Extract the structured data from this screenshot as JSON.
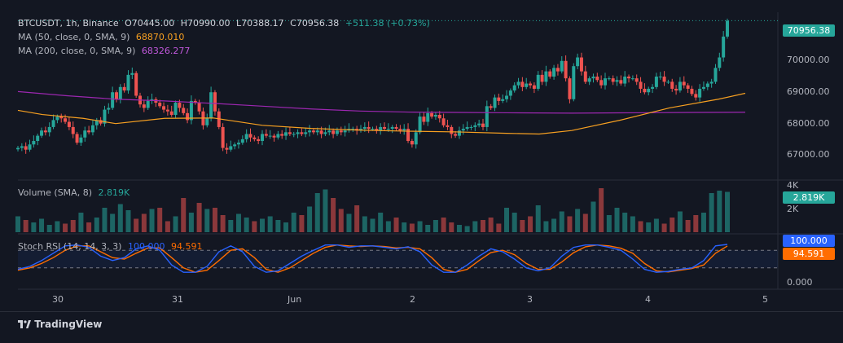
{
  "header": {
    "symbol": "BTCUSDT, 1h, Binance",
    "open": "O70445.00",
    "high": "H70990.00",
    "low": "L70388.17",
    "close": "C70956.38",
    "change": "+511.38 (+0.73%)",
    "ma50_label": "MA (50, close, 0, SMA, 9)",
    "ma50_value": "68870.010",
    "ma200_label": "MA (200, close, 0, SMA, 9)",
    "ma200_value": "68326.277",
    "volume_label": "Volume (SMA, 8)",
    "volume_value": "2.819K",
    "stoch_label": "Stoch RSI (14, 14, 3, 3)",
    "stoch_k": "100.000",
    "stoch_d": "94.591"
  },
  "price_axis": {
    "ticks": [
      "70000.00",
      "69000.00",
      "68000.00",
      "67000.00"
    ],
    "current_price": "70956.38"
  },
  "volume_axis": {
    "ticks": [
      "4K",
      "2K"
    ],
    "current": "2.819K"
  },
  "stoch_axis": {
    "ticks": [
      "0.000"
    ],
    "k_tag": "100.000",
    "d_tag": "94.591"
  },
  "time_axis": [
    "30",
    "31",
    "Jun",
    "2",
    "3",
    "4",
    "5"
  ],
  "footer": {
    "logo_text": "TradingView"
  },
  "colors": {
    "up": "#26a69a",
    "down": "#ef5350",
    "ma50": "#f7a021",
    "ma200": "#9c27b0",
    "stoch_k": "#2962ff",
    "stoch_d": "#ff6d00",
    "bg": "#131722"
  },
  "chart_data": {
    "type": "candlestick",
    "price_range": [
      66400,
      71200
    ],
    "candles_close": [
      67300,
      67350,
      67250,
      67400,
      67500,
      67650,
      67800,
      67750,
      67900,
      68100,
      68200,
      68150,
      68050,
      67900,
      67700,
      67450,
      67600,
      67800,
      67750,
      67950,
      68100,
      68000,
      68400,
      68450,
      68900,
      68700,
      69050,
      68950,
      69400,
      69450,
      68800,
      68550,
      68450,
      68650,
      68700,
      68600,
      68500,
      68400,
      68350,
      68250,
      68600,
      68450,
      68300,
      68100,
      68650,
      68600,
      68350,
      67950,
      68150,
      68900,
      68350,
      67900,
      67300,
      67250,
      67350,
      67400,
      67450,
      67550,
      67700,
      67600,
      67550,
      67500,
      67700,
      67650,
      67650,
      67600,
      67700,
      67650,
      67750,
      67700,
      67700,
      67750,
      67700,
      67750,
      67800,
      67750,
      67800,
      67700,
      67750,
      67800,
      67700,
      67800,
      67750,
      67800,
      67850,
      67850,
      67800,
      67850,
      67900,
      67850,
      67850,
      67800,
      67900,
      67850,
      67850,
      67900,
      67850,
      67800,
      67850,
      67500,
      67400,
      67750,
      68200,
      68050,
      68300,
      68200,
      68250,
      68150,
      67950,
      67900,
      67700,
      67650,
      67800,
      67850,
      67900,
      67900,
      67950,
      68000,
      67900,
      68500,
      68450,
      68750,
      68650,
      68700,
      68800,
      68950,
      69100,
      69200,
      69050,
      69150,
      69100,
      69000,
      69400,
      69200,
      69500,
      69350,
      69600,
      69500,
      69800,
      69300,
      68700,
      69650,
      69900,
      69500,
      69200,
      69300,
      69350,
      69250,
      69100,
      69300,
      69300,
      69200,
      69250,
      69150,
      69350,
      69300,
      69300,
      69200,
      69000,
      68900,
      69000,
      69050,
      69350,
      69350,
      69200,
      69200,
      69000,
      68950,
      69200,
      69100,
      69000,
      68850,
      68750,
      69000,
      69050,
      69150,
      69200,
      69600,
      69900,
      70500,
      70956
    ],
    "ma50_points": [
      [
        0,
        68380
      ],
      [
        30,
        68260
      ],
      [
        80,
        68150
      ],
      [
        120,
        68000
      ],
      [
        180,
        68150
      ],
      [
        240,
        68160
      ],
      [
        300,
        67950
      ],
      [
        360,
        67860
      ],
      [
        420,
        67810
      ],
      [
        480,
        67780
      ],
      [
        540,
        67760
      ],
      [
        600,
        67720
      ],
      [
        640,
        67700
      ],
      [
        680,
        67800
      ],
      [
        740,
        68100
      ],
      [
        800,
        68450
      ],
      [
        860,
        68700
      ],
      [
        893,
        68870
      ]
    ],
    "ma200_points": [
      [
        0,
        68920
      ],
      [
        60,
        68800
      ],
      [
        120,
        68700
      ],
      [
        180,
        68650
      ],
      [
        240,
        68580
      ],
      [
        300,
        68500
      ],
      [
        360,
        68420
      ],
      [
        420,
        68360
      ],
      [
        480,
        68330
      ],
      [
        540,
        68320
      ],
      [
        600,
        68310
      ],
      [
        680,
        68300
      ],
      [
        760,
        68310
      ],
      [
        830,
        68320
      ],
      [
        893,
        68326
      ]
    ],
    "volume": [
      1.3,
      1.0,
      0.8,
      1.1,
      0.6,
      0.9,
      0.7,
      1.0,
      1.6,
      0.8,
      1.2,
      2.0,
      1.5,
      2.3,
      1.8,
      1.1,
      1.5,
      1.9,
      2.0,
      0.9,
      1.3,
      2.8,
      1.6,
      2.4,
      1.9,
      2.0,
      1.4,
      1.0,
      1.5,
      1.2,
      0.9,
      1.1,
      1.3,
      1.0,
      0.8,
      1.6,
      1.4,
      2.1,
      3.2,
      3.5,
      2.8,
      1.9,
      1.5,
      2.2,
      1.3,
      1.1,
      1.6,
      0.9,
      1.2,
      0.8,
      0.7,
      0.9,
      0.6,
      1.0,
      1.2,
      0.8,
      0.6,
      0.5,
      0.9,
      1.0,
      1.2,
      0.7,
      2.0,
      1.6,
      1.0,
      1.3,
      2.2,
      0.9,
      1.1,
      1.7,
      1.3,
      1.9,
      1.5,
      2.5,
      3.6,
      1.4,
      2.0,
      1.6,
      1.3,
      0.9,
      0.8,
      1.1,
      0.7,
      1.2,
      1.7,
      1.0,
      1.4,
      1.6,
      3.2,
      3.4,
      3.3
    ],
    "stoch_k": [
      0.15,
      0.25,
      0.45,
      0.7,
      0.95,
      0.98,
      0.9,
      0.6,
      0.45,
      0.55,
      0.85,
      0.95,
      0.8,
      0.3,
      0.05,
      0.05,
      0.25,
      0.75,
      0.95,
      0.75,
      0.25,
      0.05,
      0.1,
      0.35,
      0.6,
      0.8,
      0.98,
      0.98,
      0.9,
      0.95,
      0.95,
      0.9,
      0.85,
      0.92,
      0.75,
      0.3,
      0.05,
      0.05,
      0.3,
      0.6,
      0.85,
      0.75,
      0.5,
      0.2,
      0.1,
      0.2,
      0.6,
      0.9,
      0.98,
      0.98,
      0.9,
      0.8,
      0.5,
      0.15,
      0.05,
      0.08,
      0.15,
      0.2,
      0.45,
      0.95,
      1.0
    ],
    "stoch_d": [
      0.12,
      0.2,
      0.35,
      0.55,
      0.8,
      0.95,
      0.95,
      0.75,
      0.55,
      0.5,
      0.7,
      0.88,
      0.88,
      0.55,
      0.2,
      0.05,
      0.12,
      0.45,
      0.8,
      0.85,
      0.55,
      0.15,
      0.05,
      0.2,
      0.45,
      0.7,
      0.9,
      0.98,
      0.95,
      0.93,
      0.95,
      0.93,
      0.88,
      0.9,
      0.85,
      0.55,
      0.15,
      0.05,
      0.15,
      0.45,
      0.72,
      0.8,
      0.65,
      0.35,
      0.15,
      0.15,
      0.4,
      0.72,
      0.92,
      0.98,
      0.95,
      0.87,
      0.7,
      0.35,
      0.1,
      0.06,
      0.12,
      0.18,
      0.3,
      0.7,
      0.946
    ]
  }
}
